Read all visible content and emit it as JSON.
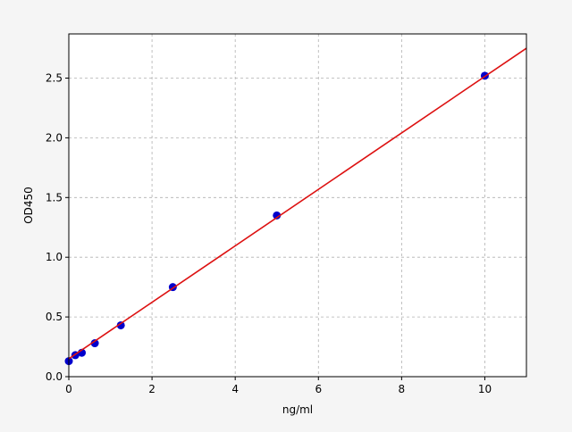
{
  "chart_data": {
    "type": "scatter",
    "title": "",
    "xlabel": "ng/ml",
    "ylabel": "OD450",
    "xlim": [
      0,
      11
    ],
    "ylim": [
      0,
      2.87
    ],
    "xticks": [
      0,
      2,
      4,
      6,
      8,
      10
    ],
    "yticks": [
      0.0,
      0.5,
      1.0,
      1.5,
      2.0,
      2.5
    ],
    "xtick_labels": [
      "0",
      "2",
      "4",
      "6",
      "8",
      "10"
    ],
    "ytick_labels": [
      "0.0",
      "0.5",
      "1.0",
      "1.5",
      "2.0",
      "2.5"
    ],
    "grid": true,
    "points": {
      "x": [
        0,
        0.156,
        0.312,
        0.625,
        1.25,
        2.5,
        5,
        10
      ],
      "y": [
        0.13,
        0.18,
        0.2,
        0.28,
        0.43,
        0.75,
        1.35,
        2.52
      ],
      "color": "#0000cc"
    },
    "fit_line": {
      "x": [
        0,
        11
      ],
      "y": [
        0.15,
        2.75
      ],
      "color": "#dd1111"
    }
  }
}
